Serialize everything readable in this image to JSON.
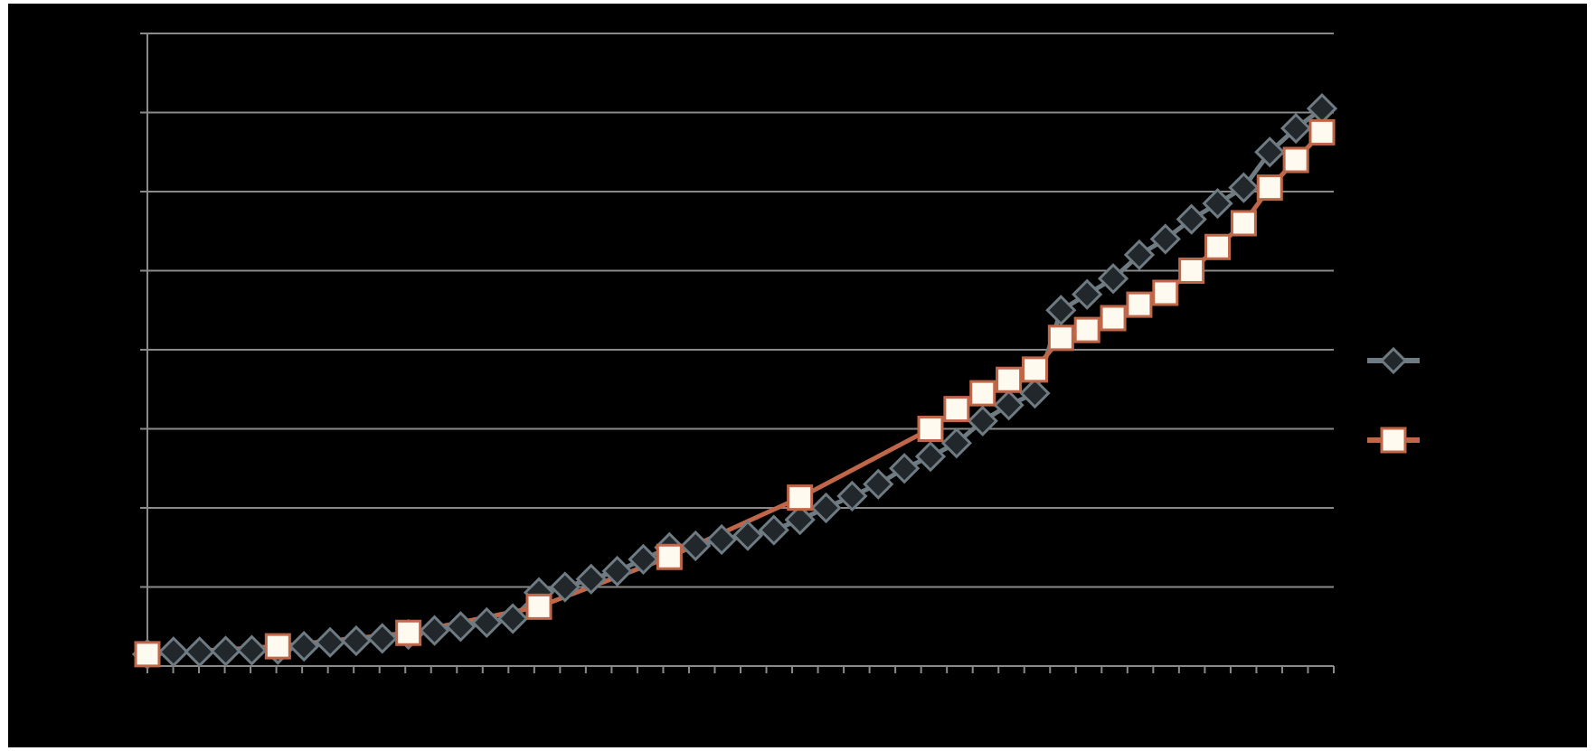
{
  "chart_data": {
    "type": "line",
    "title": "",
    "xlabel": "",
    "ylabel": "",
    "ylim": [
      0,
      8
    ],
    "xlim": [
      0,
      45
    ],
    "grid": true,
    "legend_position": "right",
    "background": "#000000",
    "colors": {
      "series_1_line": "#6f7b82",
      "series_1_marker": "#22272b",
      "series_2_line": "#c0674a",
      "series_2_marker": "#fffaf0",
      "grid": "#8a8a8a",
      "axis": "#8a8a8a"
    },
    "series": [
      {
        "marker": "diamond",
        "x": [
          0,
          1,
          2,
          3,
          4,
          5,
          6,
          7,
          8,
          9,
          10,
          11,
          12,
          13,
          14,
          15,
          16,
          17,
          18,
          19,
          20,
          21,
          22,
          23,
          24,
          25,
          26,
          27,
          28,
          29,
          30,
          31,
          32,
          33,
          34,
          35,
          36,
          37,
          38,
          39,
          40,
          41,
          42,
          43,
          44,
          45
        ],
        "values": [
          0.15,
          0.18,
          0.18,
          0.19,
          0.2,
          0.21,
          0.25,
          0.3,
          0.32,
          0.35,
          0.4,
          0.45,
          0.5,
          0.55,
          0.6,
          0.93,
          1.0,
          1.1,
          1.2,
          1.35,
          1.5,
          1.52,
          1.6,
          1.65,
          1.72,
          1.85,
          2.0,
          2.15,
          2.3,
          2.5,
          2.65,
          2.82,
          3.1,
          3.3,
          3.45,
          4.5,
          4.7,
          4.9,
          5.2,
          5.4,
          5.65,
          5.85,
          6.05,
          6.5,
          6.8,
          7.05
        ]
      },
      {
        "marker": "square",
        "x": [
          0,
          5,
          10,
          15,
          20,
          25,
          30,
          31,
          32,
          33,
          34,
          35,
          36,
          37,
          38,
          39,
          40,
          41,
          42,
          43,
          44,
          45
        ],
        "values": [
          0.15,
          0.25,
          0.42,
          0.75,
          1.38,
          2.13,
          3.0,
          3.25,
          3.45,
          3.62,
          3.75,
          4.15,
          4.25,
          4.4,
          4.57,
          4.72,
          5.0,
          5.3,
          5.6,
          6.05,
          6.4,
          6.75
        ]
      }
    ]
  }
}
